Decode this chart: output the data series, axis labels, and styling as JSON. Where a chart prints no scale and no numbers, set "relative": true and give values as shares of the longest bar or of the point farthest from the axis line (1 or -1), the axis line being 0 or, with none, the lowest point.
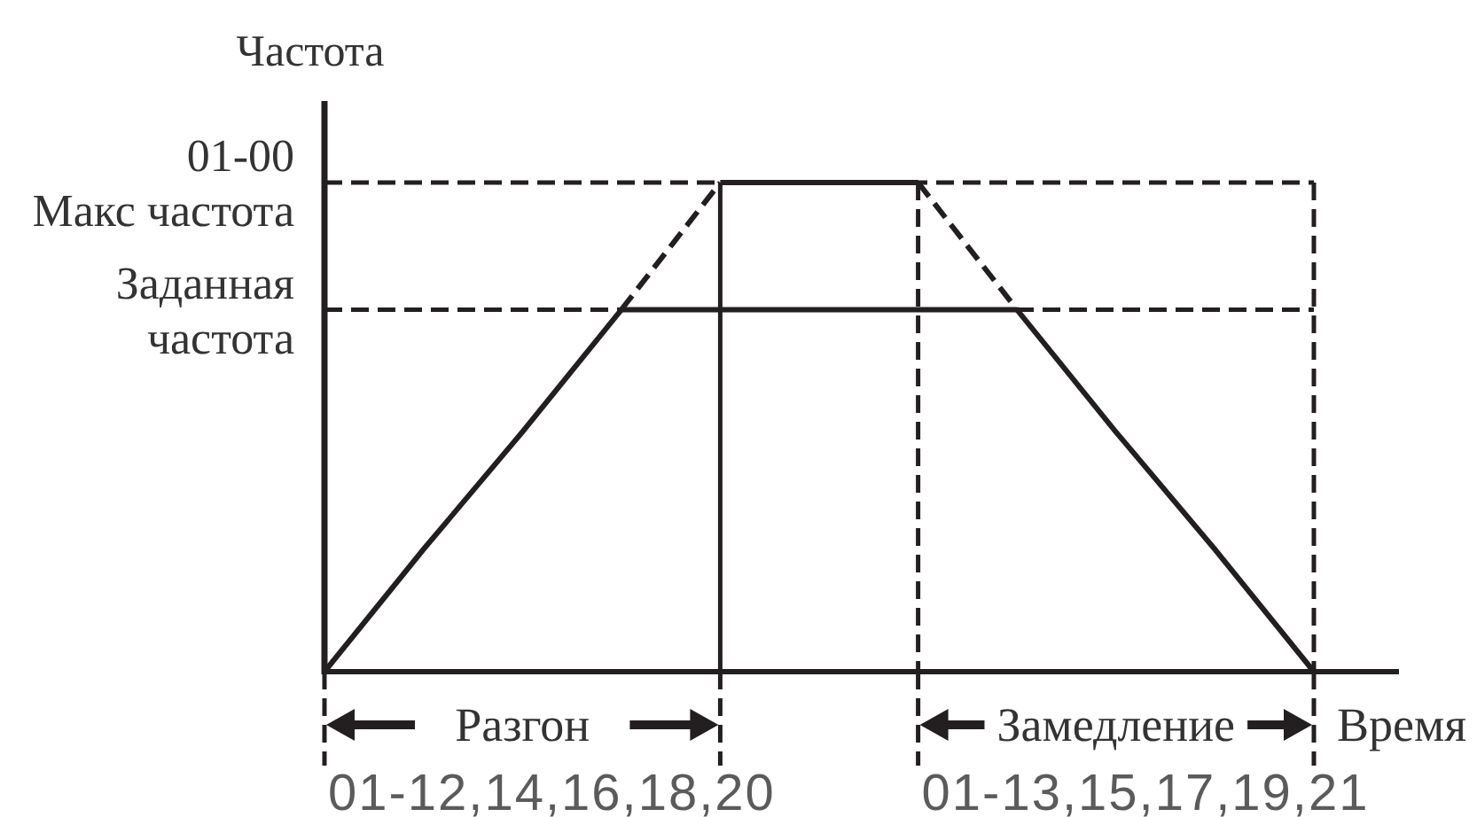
{
  "chart_data": {
    "type": "line",
    "relative": true,
    "ylabel": "Частота",
    "xlabel": "Время",
    "categories": [
      null,
      null,
      null,
      null,
      null,
      null,
      null,
      null,
      null,
      null,
      null
    ],
    "series": [
      {
        "color": "#231f20",
        "values": [
          0,
          0.25,
          0.49,
          0.74,
          null,
          null,
          null,
          null,
          null,
          null,
          null
        ]
      },
      {
        "color": "#231f20",
        "values": [
          null,
          null,
          null,
          0.74,
          1,
          null,
          null,
          null,
          null,
          null,
          null
        ],
        "line_style": "dashed"
      },
      {
        "color": "#231f20",
        "values": [
          null,
          null,
          null,
          null,
          1,
          1,
          1,
          null,
          null,
          null,
          null
        ]
      },
      {
        "color": "#231f20",
        "values": [
          null,
          null,
          null,
          null,
          null,
          null,
          1,
          0.74,
          null,
          null,
          null
        ],
        "line_style": "dashed"
      },
      {
        "color": "#231f20",
        "values": [
          null,
          null,
          null,
          null,
          null,
          null,
          null,
          0.74,
          0.49,
          0.25,
          0
        ]
      },
      {
        "color": "#231f20",
        "values": [
          null,
          null,
          null,
          0.74,
          0.74,
          0.74,
          0.74,
          0.74,
          null,
          null,
          null
        ]
      }
    ],
    "ref_lines": [
      {
        "axis": "y",
        "value": 1,
        "label": "01-00\nМакс частота",
        "line_style": "dashed"
      },
      {
        "axis": "y",
        "value": 0.74,
        "label": "Заданная\nчастота",
        "line_style": "dashed"
      }
    ],
    "annotations": [
      "Разгон",
      "Замедление",
      "01-12,14,16,18,20",
      "01-13,15,17,19,21"
    ]
  }
}
